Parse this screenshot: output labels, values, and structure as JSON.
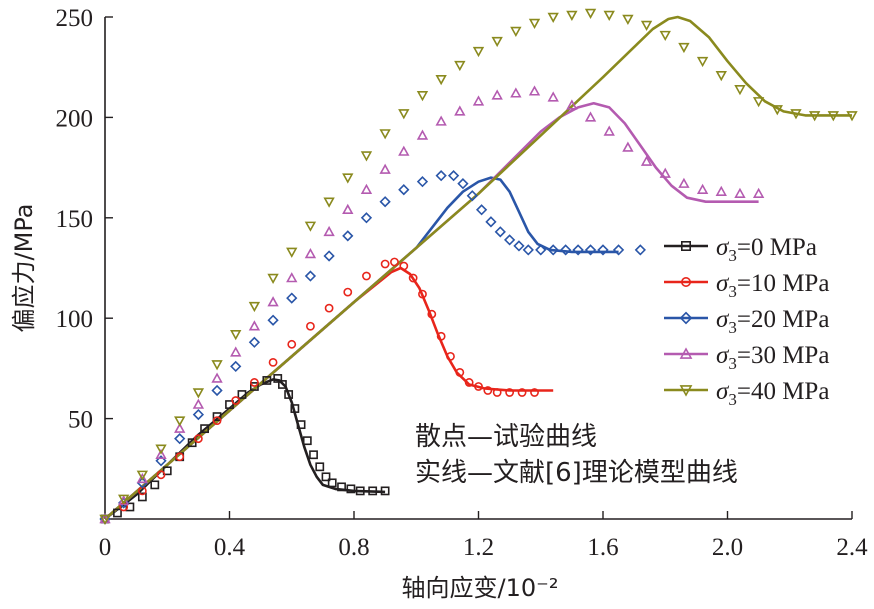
{
  "chart_data": {
    "type": "line",
    "xlabel": "轴向应变/10⁻²",
    "ylabel": "偏应力/MPa",
    "xlim": [
      0,
      2.4
    ],
    "ylim": [
      0,
      250
    ],
    "xticks": [
      "0",
      "0.4",
      "0.8",
      "1.2",
      "1.6",
      "2.0",
      "2.4"
    ],
    "yticks": [
      "50",
      "100",
      "150",
      "200",
      "250"
    ],
    "legend_position": "right",
    "annotations": [
      "散点—试验曲线",
      "实线—文献[6]理论模型曲线"
    ],
    "series": [
      {
        "name": "σ3=0 MPa",
        "legend_prefix": "σ",
        "legend_sub": "3",
        "legend_suffix": "=0 MPa",
        "color": "#231f20",
        "marker": "square",
        "points": [
          [
            0,
            0
          ],
          [
            0.04,
            3
          ],
          [
            0.08,
            6
          ],
          [
            0.12,
            11
          ],
          [
            0.16,
            17
          ],
          [
            0.2,
            24
          ],
          [
            0.24,
            31
          ],
          [
            0.28,
            38
          ],
          [
            0.32,
            45
          ],
          [
            0.36,
            51
          ],
          [
            0.4,
            57
          ],
          [
            0.44,
            62
          ],
          [
            0.48,
            66
          ],
          [
            0.52,
            69
          ],
          [
            0.555,
            70
          ],
          [
            0.57,
            67
          ],
          [
            0.59,
            62
          ],
          [
            0.61,
            55
          ],
          [
            0.63,
            47
          ],
          [
            0.65,
            39
          ],
          [
            0.67,
            32
          ],
          [
            0.69,
            26
          ],
          [
            0.71,
            21
          ],
          [
            0.73,
            18
          ],
          [
            0.76,
            16
          ],
          [
            0.79,
            15
          ],
          [
            0.82,
            14
          ],
          [
            0.86,
            14
          ],
          [
            0.9,
            14
          ]
        ],
        "model": [
          [
            0,
            0
          ],
          [
            0.1,
            12
          ],
          [
            0.2,
            27
          ],
          [
            0.3,
            42
          ],
          [
            0.4,
            55
          ],
          [
            0.46,
            63
          ],
          [
            0.5,
            67
          ],
          [
            0.54,
            69.5
          ],
          [
            0.56,
            69
          ],
          [
            0.58,
            66
          ],
          [
            0.6,
            58
          ],
          [
            0.62,
            47
          ],
          [
            0.64,
            36
          ],
          [
            0.66,
            27
          ],
          [
            0.68,
            21
          ],
          [
            0.7,
            17
          ],
          [
            0.74,
            15
          ],
          [
            0.8,
            14
          ],
          [
            0.9,
            13.5
          ]
        ]
      },
      {
        "name": "σ3=10 MPa",
        "legend_prefix": "σ",
        "legend_sub": "3",
        "legend_suffix": "=10 MPa",
        "color": "#e8251b",
        "marker": "circle",
        "points": [
          [
            0,
            0
          ],
          [
            0.06,
            6
          ],
          [
            0.12,
            14
          ],
          [
            0.18,
            22
          ],
          [
            0.24,
            31
          ],
          [
            0.3,
            40
          ],
          [
            0.36,
            49
          ],
          [
            0.42,
            59
          ],
          [
            0.48,
            68
          ],
          [
            0.54,
            78
          ],
          [
            0.6,
            87
          ],
          [
            0.66,
            96
          ],
          [
            0.72,
            105
          ],
          [
            0.78,
            113
          ],
          [
            0.84,
            121
          ],
          [
            0.9,
            127
          ],
          [
            0.93,
            128
          ],
          [
            0.96,
            126
          ],
          [
            0.99,
            120
          ],
          [
            1.02,
            112
          ],
          [
            1.05,
            102
          ],
          [
            1.08,
            91
          ],
          [
            1.11,
            81
          ],
          [
            1.14,
            73
          ],
          [
            1.17,
            68
          ],
          [
            1.2,
            66
          ],
          [
            1.23,
            64
          ],
          [
            1.26,
            63
          ],
          [
            1.3,
            63
          ],
          [
            1.34,
            63
          ],
          [
            1.38,
            63
          ]
        ],
        "model": [
          [
            0,
            0
          ],
          [
            0.2,
            27
          ],
          [
            0.4,
            54
          ],
          [
            0.6,
            81
          ],
          [
            0.8,
            108
          ],
          [
            0.88,
            118
          ],
          [
            0.92,
            123
          ],
          [
            0.95,
            125
          ],
          [
            0.98,
            122
          ],
          [
            1.01,
            115
          ],
          [
            1.04,
            104
          ],
          [
            1.07,
            92
          ],
          [
            1.1,
            81
          ],
          [
            1.13,
            73
          ],
          [
            1.17,
            67
          ],
          [
            1.22,
            65
          ],
          [
            1.3,
            64
          ],
          [
            1.44,
            64
          ]
        ]
      },
      {
        "name": "σ3=20 MPa",
        "legend_prefix": "σ",
        "legend_sub": "3",
        "legend_suffix": "=20 MPa",
        "color": "#2a56a8",
        "marker": "diamond",
        "points": [
          [
            0,
            0
          ],
          [
            0.06,
            8
          ],
          [
            0.12,
            18
          ],
          [
            0.18,
            29
          ],
          [
            0.24,
            40
          ],
          [
            0.3,
            52
          ],
          [
            0.36,
            64
          ],
          [
            0.42,
            76
          ],
          [
            0.48,
            88
          ],
          [
            0.54,
            99
          ],
          [
            0.6,
            110
          ],
          [
            0.66,
            121
          ],
          [
            0.72,
            131
          ],
          [
            0.78,
            141
          ],
          [
            0.84,
            150
          ],
          [
            0.9,
            158
          ],
          [
            0.96,
            164
          ],
          [
            1.02,
            168
          ],
          [
            1.08,
            171
          ],
          [
            1.12,
            171
          ],
          [
            1.15,
            167
          ],
          [
            1.18,
            161
          ],
          [
            1.21,
            154
          ],
          [
            1.24,
            148
          ],
          [
            1.27,
            143
          ],
          [
            1.3,
            139
          ],
          [
            1.33,
            136
          ],
          [
            1.36,
            134
          ],
          [
            1.4,
            134
          ],
          [
            1.44,
            134
          ],
          [
            1.48,
            134
          ],
          [
            1.52,
            134
          ],
          [
            1.56,
            134
          ],
          [
            1.6,
            134
          ],
          [
            1.65,
            134
          ],
          [
            1.72,
            134
          ]
        ],
        "model": [
          [
            0,
            0
          ],
          [
            0.4,
            54
          ],
          [
            0.8,
            108
          ],
          [
            1.0,
            135
          ],
          [
            1.1,
            155
          ],
          [
            1.15,
            163
          ],
          [
            1.2,
            168
          ],
          [
            1.24,
            170
          ],
          [
            1.27,
            169
          ],
          [
            1.3,
            163
          ],
          [
            1.33,
            153
          ],
          [
            1.36,
            143
          ],
          [
            1.39,
            137
          ],
          [
            1.43,
            134
          ],
          [
            1.5,
            133
          ],
          [
            1.65,
            133
          ]
        ]
      },
      {
        "name": "σ3=30 MPa",
        "legend_prefix": "σ",
        "legend_sub": "3",
        "legend_suffix": "=30 MPa",
        "color": "#b45bb0",
        "marker": "triangle-up",
        "points": [
          [
            0,
            0
          ],
          [
            0.06,
            9
          ],
          [
            0.12,
            20
          ],
          [
            0.18,
            32
          ],
          [
            0.24,
            45
          ],
          [
            0.3,
            57
          ],
          [
            0.36,
            70
          ],
          [
            0.42,
            83
          ],
          [
            0.48,
            96
          ],
          [
            0.54,
            108
          ],
          [
            0.6,
            120
          ],
          [
            0.66,
            132
          ],
          [
            0.72,
            143
          ],
          [
            0.78,
            154
          ],
          [
            0.84,
            164
          ],
          [
            0.9,
            174
          ],
          [
            0.96,
            183
          ],
          [
            1.02,
            191
          ],
          [
            1.08,
            198
          ],
          [
            1.14,
            203
          ],
          [
            1.2,
            208
          ],
          [
            1.26,
            211
          ],
          [
            1.32,
            212
          ],
          [
            1.38,
            213
          ],
          [
            1.44,
            210
          ],
          [
            1.5,
            206
          ],
          [
            1.56,
            200
          ],
          [
            1.62,
            193
          ],
          [
            1.68,
            185
          ],
          [
            1.74,
            178
          ],
          [
            1.8,
            172
          ],
          [
            1.86,
            167
          ],
          [
            1.92,
            164
          ],
          [
            1.98,
            163
          ],
          [
            2.04,
            162
          ],
          [
            2.1,
            162
          ]
        ],
        "model": [
          [
            0,
            0
          ],
          [
            0.4,
            54
          ],
          [
            0.8,
            108
          ],
          [
            1.2,
            162
          ],
          [
            1.4,
            193
          ],
          [
            1.46,
            200
          ],
          [
            1.52,
            205
          ],
          [
            1.57,
            207
          ],
          [
            1.62,
            205
          ],
          [
            1.67,
            197
          ],
          [
            1.72,
            186
          ],
          [
            1.77,
            175
          ],
          [
            1.82,
            166
          ],
          [
            1.87,
            160
          ],
          [
            1.93,
            158
          ],
          [
            2.0,
            158
          ],
          [
            2.1,
            158
          ]
        ]
      },
      {
        "name": "σ3=40 MPa",
        "legend_prefix": "σ",
        "legend_sub": "3",
        "legend_suffix": "=40 MPa",
        "color": "#8a8a1e",
        "marker": "triangle-down",
        "points": [
          [
            0,
            0
          ],
          [
            0.06,
            10
          ],
          [
            0.12,
            22
          ],
          [
            0.18,
            35
          ],
          [
            0.24,
            49
          ],
          [
            0.3,
            63
          ],
          [
            0.36,
            77
          ],
          [
            0.42,
            92
          ],
          [
            0.48,
            106
          ],
          [
            0.54,
            120
          ],
          [
            0.6,
            133
          ],
          [
            0.66,
            146
          ],
          [
            0.72,
            158
          ],
          [
            0.78,
            170
          ],
          [
            0.84,
            181
          ],
          [
            0.9,
            192
          ],
          [
            0.96,
            202
          ],
          [
            1.02,
            211
          ],
          [
            1.08,
            219
          ],
          [
            1.14,
            226
          ],
          [
            1.2,
            233
          ],
          [
            1.26,
            238
          ],
          [
            1.32,
            243
          ],
          [
            1.38,
            247
          ],
          [
            1.44,
            250
          ],
          [
            1.5,
            251
          ],
          [
            1.56,
            252
          ],
          [
            1.62,
            251
          ],
          [
            1.68,
            249
          ],
          [
            1.74,
            246
          ],
          [
            1.8,
            241
          ],
          [
            1.86,
            235
          ],
          [
            1.92,
            228
          ],
          [
            1.98,
            221
          ],
          [
            2.04,
            214
          ],
          [
            2.1,
            208
          ],
          [
            2.16,
            204
          ],
          [
            2.22,
            202
          ],
          [
            2.28,
            201
          ],
          [
            2.34,
            201
          ],
          [
            2.4,
            201
          ]
        ],
        "model": [
          [
            0,
            0
          ],
          [
            0.4,
            54
          ],
          [
            0.8,
            108
          ],
          [
            1.2,
            162
          ],
          [
            1.6,
            220
          ],
          [
            1.7,
            235
          ],
          [
            1.76,
            244
          ],
          [
            1.81,
            249
          ],
          [
            1.84,
            250
          ],
          [
            1.88,
            248
          ],
          [
            1.94,
            240
          ],
          [
            2.0,
            228
          ],
          [
            2.06,
            217
          ],
          [
            2.12,
            208
          ],
          [
            2.18,
            203
          ],
          [
            2.25,
            201
          ],
          [
            2.33,
            201
          ],
          [
            2.4,
            201
          ]
        ]
      }
    ]
  }
}
